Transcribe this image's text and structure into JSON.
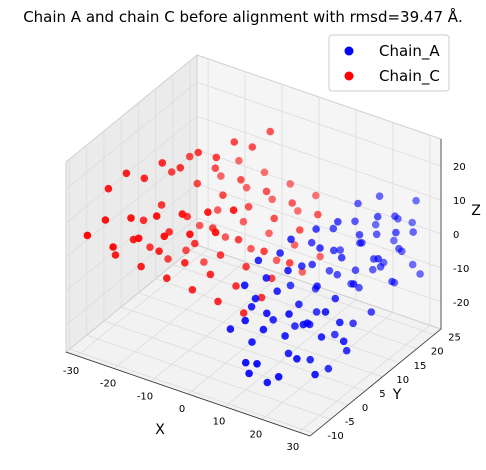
{
  "chart_data": {
    "type": "scatter3d",
    "title": "Chain A and chain C before alignment with rmsd=39.47 Å.",
    "xlabel": "X",
    "ylabel": "Y",
    "zlabel": "Z",
    "xticks": [
      -30,
      -20,
      -10,
      0,
      10,
      20,
      30
    ],
    "yticks": [
      -10,
      -5,
      0,
      5,
      10,
      15,
      20,
      25
    ],
    "zticks": [
      -20,
      -10,
      0,
      10,
      20
    ],
    "xlim": [
      -33,
      33
    ],
    "ylim": [
      -11,
      27
    ],
    "zlim": [
      -28,
      28
    ],
    "grid": true,
    "legend_position": "top-right",
    "series": [
      {
        "name": "Chain_A",
        "color": "#0000ff",
        "points": [
          [
            10,
            -5,
            -20
          ],
          [
            14,
            -6,
            -18
          ],
          [
            18,
            -4,
            -22
          ],
          [
            22,
            -3,
            -16
          ],
          [
            26,
            -2,
            -20
          ],
          [
            12,
            -2,
            -12
          ],
          [
            16,
            0,
            -14
          ],
          [
            20,
            1,
            -10
          ],
          [
            24,
            2,
            -13
          ],
          [
            28,
            3,
            -8
          ],
          [
            8,
            0,
            -6
          ],
          [
            12,
            2,
            -4
          ],
          [
            16,
            4,
            -8
          ],
          [
            20,
            5,
            -2
          ],
          [
            24,
            6,
            -5
          ],
          [
            28,
            7,
            0
          ],
          [
            6,
            3,
            2
          ],
          [
            10,
            5,
            4
          ],
          [
            14,
            7,
            0
          ],
          [
            18,
            8,
            6
          ],
          [
            22,
            10,
            3
          ],
          [
            26,
            11,
            8
          ],
          [
            30,
            12,
            4
          ],
          [
            4,
            -3,
            -14
          ],
          [
            8,
            -1,
            -18
          ],
          [
            6,
            1,
            -10
          ],
          [
            10,
            3,
            -14
          ],
          [
            14,
            5,
            -16
          ],
          [
            18,
            7,
            -12
          ],
          [
            22,
            8,
            -18
          ],
          [
            26,
            9,
            -14
          ],
          [
            30,
            10,
            -10
          ],
          [
            12,
            6,
            8
          ],
          [
            16,
            9,
            10
          ],
          [
            20,
            11,
            12
          ],
          [
            24,
            13,
            8
          ],
          [
            28,
            14,
            14
          ],
          [
            32,
            15,
            10
          ],
          [
            14,
            10,
            -2
          ],
          [
            18,
            12,
            2
          ],
          [
            22,
            14,
            -4
          ],
          [
            26,
            15,
            0
          ],
          [
            30,
            16,
            -6
          ],
          [
            10,
            8,
            -8
          ],
          [
            14,
            11,
            -10
          ],
          [
            18,
            13,
            -6
          ],
          [
            22,
            15,
            -10
          ],
          [
            26,
            17,
            -4
          ],
          [
            30,
            18,
            2
          ],
          [
            16,
            14,
            6
          ],
          [
            20,
            16,
            8
          ],
          [
            24,
            18,
            4
          ],
          [
            28,
            19,
            10
          ],
          [
            32,
            20,
            6
          ],
          [
            12,
            12,
            2
          ],
          [
            16,
            16,
            -2
          ],
          [
            20,
            18,
            0
          ],
          [
            24,
            20,
            -6
          ],
          [
            28,
            21,
            -2
          ],
          [
            32,
            22,
            -8
          ],
          [
            18,
            19,
            10
          ],
          [
            22,
            21,
            12
          ],
          [
            26,
            22,
            6
          ],
          [
            30,
            23,
            12
          ],
          [
            14,
            15,
            -8
          ],
          [
            18,
            17,
            -12
          ],
          [
            22,
            19,
            -8
          ],
          [
            26,
            21,
            -12
          ],
          [
            30,
            22,
            -6
          ],
          [
            20,
            22,
            2
          ],
          [
            24,
            23,
            -2
          ],
          [
            28,
            24,
            4
          ],
          [
            8,
            -3,
            -10
          ],
          [
            12,
            -1,
            -8
          ],
          [
            16,
            1,
            -20
          ],
          [
            20,
            3,
            -22
          ],
          [
            24,
            4,
            -24
          ],
          [
            28,
            5,
            -18
          ],
          [
            10,
            -4,
            -24
          ],
          [
            14,
            -3,
            -26
          ],
          [
            18,
            -1,
            -6
          ],
          [
            22,
            0,
            -8
          ],
          [
            26,
            1,
            -4
          ],
          [
            30,
            2,
            -12
          ],
          [
            6,
            -1,
            -2
          ],
          [
            10,
            1,
            0
          ],
          [
            14,
            3,
            2
          ],
          [
            18,
            5,
            -14
          ]
        ]
      },
      {
        "name": "Chain_C",
        "color": "#ff0000",
        "points": [
          [
            -30,
            -8,
            5
          ],
          [
            -27,
            -6,
            9
          ],
          [
            -24,
            -7,
            3
          ],
          [
            -21,
            -5,
            11
          ],
          [
            -18,
            -6,
            7
          ],
          [
            -15,
            -4,
            13
          ],
          [
            -12,
            -5,
            9
          ],
          [
            -9,
            -3,
            15
          ],
          [
            -6,
            -4,
            11
          ],
          [
            -3,
            -2,
            17
          ],
          [
            0,
            -3,
            13
          ],
          [
            3,
            -1,
            19
          ],
          [
            -28,
            -2,
            -5
          ],
          [
            -25,
            0,
            -1
          ],
          [
            -22,
            -1,
            -7
          ],
          [
            -19,
            1,
            -3
          ],
          [
            -16,
            0,
            -9
          ],
          [
            -13,
            2,
            -5
          ],
          [
            -10,
            1,
            -11
          ],
          [
            -7,
            3,
            -7
          ],
          [
            -4,
            2,
            -13
          ],
          [
            -1,
            4,
            -9
          ],
          [
            2,
            3,
            -15
          ],
          [
            5,
            5,
            -11
          ],
          [
            -26,
            4,
            1
          ],
          [
            -23,
            6,
            5
          ],
          [
            -20,
            5,
            -1
          ],
          [
            -17,
            7,
            3
          ],
          [
            -14,
            6,
            -3
          ],
          [
            -11,
            8,
            1
          ],
          [
            -8,
            7,
            -5
          ],
          [
            -5,
            9,
            -1
          ],
          [
            -2,
            8,
            -7
          ],
          [
            1,
            10,
            -3
          ],
          [
            4,
            9,
            -9
          ],
          [
            7,
            11,
            -5
          ],
          [
            -24,
            10,
            11
          ],
          [
            -21,
            12,
            15
          ],
          [
            -18,
            11,
            9
          ],
          [
            -15,
            13,
            13
          ],
          [
            -12,
            12,
            7
          ],
          [
            -9,
            14,
            11
          ],
          [
            -6,
            13,
            5
          ],
          [
            -3,
            15,
            9
          ],
          [
            0,
            14,
            3
          ],
          [
            3,
            16,
            7
          ],
          [
            6,
            15,
            1
          ],
          [
            9,
            17,
            5
          ],
          [
            -22,
            16,
            -9
          ],
          [
            -19,
            18,
            -5
          ],
          [
            -16,
            17,
            -11
          ],
          [
            -13,
            19,
            -7
          ],
          [
            -10,
            18,
            -13
          ],
          [
            -7,
            20,
            -9
          ],
          [
            -4,
            19,
            -15
          ],
          [
            -1,
            21,
            -11
          ],
          [
            2,
            20,
            -17
          ],
          [
            5,
            22,
            -13
          ],
          [
            -20,
            20,
            3
          ],
          [
            -17,
            22,
            7
          ],
          [
            -14,
            21,
            1
          ],
          [
            -11,
            23,
            5
          ],
          [
            -8,
            22,
            -1
          ],
          [
            -5,
            24,
            3
          ],
          [
            -2,
            23,
            -3
          ],
          [
            1,
            25,
            1
          ],
          [
            -29,
            -3,
            15
          ],
          [
            -26,
            -1,
            19
          ],
          [
            -23,
            1,
            17
          ],
          [
            -20,
            3,
            21
          ],
          [
            -17,
            5,
            19
          ],
          [
            -14,
            7,
            23
          ],
          [
            -11,
            9,
            21
          ],
          [
            -8,
            11,
            25
          ],
          [
            -5,
            13,
            23
          ],
          [
            -2,
            15,
            27
          ],
          [
            -28,
            8,
            -11
          ],
          [
            -25,
            10,
            -15
          ],
          [
            -22,
            12,
            -13
          ],
          [
            -19,
            14,
            -17
          ]
        ]
      }
    ]
  }
}
